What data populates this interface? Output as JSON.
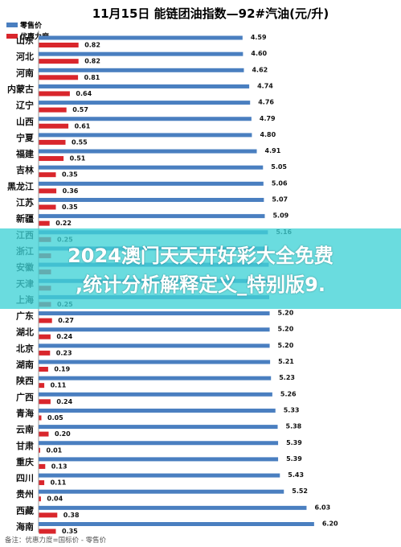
{
  "chart_data": {
    "type": "bar",
    "orientation": "horizontal",
    "title": "11月15日  能链团油指数—92#汽油(元/升)",
    "legend_position": "top-left",
    "categories": [
      "山东",
      "河北",
      "河南",
      "内蒙古",
      "辽宁",
      "山西",
      "宁夏",
      "福建",
      "吉林",
      "黑龙江",
      "江苏",
      "新疆",
      "江西",
      "浙江",
      "安徽",
      "天津",
      "上海",
      "广东",
      "湖北",
      "北京",
      "湖南",
      "陕西",
      "广西",
      "青海",
      "云南",
      "甘肃",
      "重庆",
      "四川",
      "贵州",
      "西藏",
      "海南"
    ],
    "series": [
      {
        "name": "零售价",
        "color": "#4a7fc0",
        "values": [
          4.59,
          4.6,
          4.62,
          4.74,
          4.76,
          4.79,
          4.8,
          4.91,
          5.05,
          5.06,
          5.07,
          5.09,
          5.16,
          5.17,
          5.18,
          5.18,
          5.19,
          5.2,
          5.2,
          5.2,
          5.21,
          5.23,
          5.26,
          5.33,
          5.38,
          5.39,
          5.39,
          5.43,
          5.52,
          6.03,
          6.2
        ]
      },
      {
        "name": "优惠力度",
        "color": "#d9262c",
        "values": [
          0.82,
          0.82,
          0.81,
          0.64,
          0.57,
          0.61,
          0.55,
          0.51,
          0.35,
          0.36,
          0.35,
          0.22,
          0.25,
          0.25,
          0.25,
          0.25,
          0.25,
          0.27,
          0.24,
          0.23,
          0.19,
          0.11,
          0.24,
          0.05,
          0.2,
          0.01,
          0.13,
          0.11,
          0.04,
          0.38,
          0.35
        ]
      }
    ],
    "visible_retail_labels": [
      "4.59",
      "4.60",
      "4.62",
      "4.74",
      "4.76",
      "4.79",
      "4.80",
      "4.91",
      "5.05",
      "5.06",
      "5.07",
      "5.09",
      "5.16",
      "",
      "",
      "",
      "",
      "5.20",
      "5.20",
      "5.20",
      "5.21",
      "5.23",
      "5.26",
      "5.33",
      "5.38",
      "5.39",
      "5.39",
      "5.43",
      "5.52",
      "6.03",
      "6.20"
    ],
    "visible_discount_labels": [
      "0.82",
      "0.82",
      "0.81",
      "0.64",
      "0.57",
      "0.61",
      "0.55",
      "0.51",
      "0.35",
      "0.36",
      "0.35",
      "0.22",
      "0.25",
      "",
      "",
      "",
      "0.25",
      "0.27",
      "0.24",
      "0.23",
      "0.19",
      "0.11",
      "0.24",
      "0.05",
      "0.20",
      "0.01",
      "0.13",
      "0.11",
      "0.04",
      "0.38",
      "0.35"
    ],
    "grid": false,
    "note": "备注：优惠力度=国标价 - 零售价"
  },
  "banner": {
    "text": "2024澳门天天开好彩大全免费\n,统计分析解释定义_特别版9."
  }
}
